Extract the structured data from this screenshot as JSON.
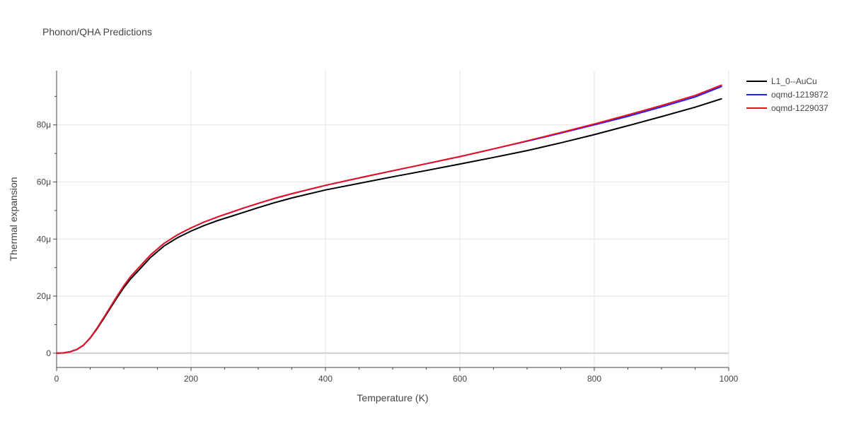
{
  "chart_data": {
    "type": "line",
    "title": "Phonon/QHA Predictions",
    "xlabel": "Temperature (K)",
    "ylabel": "Thermal expansion",
    "xlim": [
      0,
      1000
    ],
    "ylim": [
      -5,
      99
    ],
    "x_ticks": [
      0,
      200,
      400,
      600,
      800,
      1000
    ],
    "x_tick_labels": [
      "0",
      "200",
      "400",
      "600",
      "800",
      "1000"
    ],
    "y_ticks": [
      0,
      20,
      40,
      60,
      80
    ],
    "y_tick_labels": [
      "0",
      "20μ",
      "40μ",
      "60μ",
      "80μ"
    ],
    "grid": true,
    "legend_position": "top-right",
    "series": [
      {
        "name": "L1_0--AuCu",
        "color": "#000000",
        "x": [
          0,
          10,
          20,
          30,
          40,
          50,
          60,
          70,
          80,
          90,
          100,
          110,
          120,
          140,
          160,
          180,
          200,
          220,
          240,
          260,
          280,
          300,
          325,
          350,
          400,
          450,
          500,
          550,
          600,
          650,
          700,
          750,
          800,
          850,
          900,
          950,
          990
        ],
        "y": [
          0,
          0.1,
          0.5,
          1.3,
          2.8,
          5.3,
          8.5,
          12.1,
          15.8,
          19.5,
          23.0,
          26.0,
          28.5,
          33.6,
          37.6,
          40.5,
          42.8,
          44.8,
          46.5,
          48.0,
          49.5,
          51.0,
          52.8,
          54.4,
          57.2,
          59.5,
          61.8,
          64.0,
          66.3,
          68.6,
          71.0,
          73.7,
          76.6,
          79.7,
          82.9,
          86.2,
          89.2
        ]
      },
      {
        "name": "oqmd-1219872",
        "color": "#1f1fff",
        "x": [
          0,
          10,
          20,
          30,
          40,
          50,
          60,
          70,
          80,
          90,
          100,
          110,
          120,
          140,
          160,
          180,
          200,
          220,
          240,
          260,
          280,
          300,
          325,
          350,
          400,
          450,
          500,
          550,
          600,
          650,
          700,
          750,
          800,
          850,
          900,
          950,
          990
        ],
        "y": [
          0,
          0.1,
          0.5,
          1.3,
          2.8,
          5.4,
          8.7,
          12.4,
          16.2,
          20.0,
          23.6,
          26.8,
          29.4,
          34.5,
          38.5,
          41.5,
          43.9,
          46.0,
          47.8,
          49.4,
          51.0,
          52.5,
          54.3,
          55.9,
          58.8,
          61.4,
          63.9,
          66.4,
          68.9,
          71.6,
          74.3,
          77.1,
          80.0,
          83.0,
          86.3,
          89.8,
          93.5
        ]
      },
      {
        "name": "oqmd-1229037",
        "color": "#e8101a",
        "x": [
          0,
          10,
          20,
          30,
          40,
          50,
          60,
          70,
          80,
          90,
          100,
          110,
          120,
          140,
          160,
          180,
          200,
          220,
          240,
          260,
          280,
          300,
          325,
          350,
          400,
          450,
          500,
          550,
          600,
          650,
          700,
          750,
          800,
          850,
          900,
          950,
          990
        ],
        "y": [
          0,
          0.1,
          0.5,
          1.3,
          2.8,
          5.4,
          8.7,
          12.4,
          16.2,
          20.0,
          23.6,
          26.8,
          29.4,
          34.5,
          38.5,
          41.5,
          43.9,
          46.0,
          47.8,
          49.4,
          51.0,
          52.5,
          54.3,
          55.9,
          58.8,
          61.4,
          63.9,
          66.4,
          68.9,
          71.6,
          74.4,
          77.3,
          80.3,
          83.5,
          86.8,
          90.3,
          94.0
        ]
      }
    ]
  }
}
